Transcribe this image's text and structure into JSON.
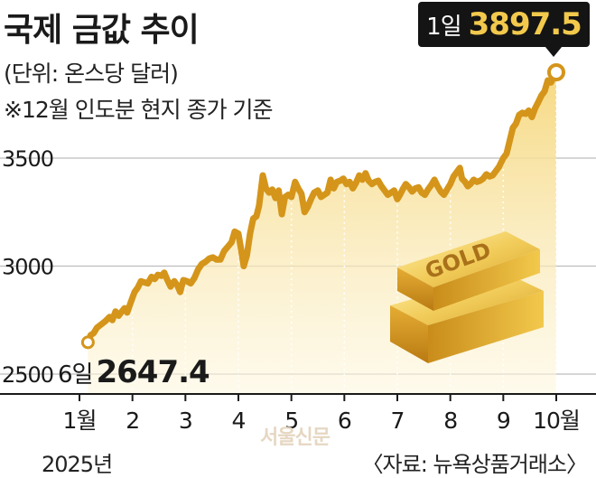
{
  "title": "국제 금값 추이",
  "subtitle": "(단위: 온스당 달러)",
  "note": "※12월 인도분 현지 종가 기준",
  "year_label": "2025년",
  "source": "〈자료: 뉴욕상품거래소〉",
  "watermark": "서울신문",
  "callouts": {
    "start_label": "6일",
    "start_value": "2647.4",
    "end_label": "1일",
    "end_value": "3897.5"
  },
  "gold_bar_text": "GOLD",
  "colors": {
    "line": "#d4951a",
    "area_top": "#f6d77c",
    "area_bottom": "#fdf6dd",
    "grid": "#bdbdbd",
    "callout_bg": "#141414",
    "callout_value": "#f2c94c"
  },
  "chart_data": {
    "type": "area",
    "title": "국제 금값 추이",
    "ylabel": "",
    "xlabel": "",
    "ylim": [
      2500,
      4000
    ],
    "yticks": [
      2500,
      3000,
      3500
    ],
    "grid": true,
    "month_ticks": [
      {
        "label": "1월",
        "x": 0.0
      },
      {
        "label": "2",
        "x": 1.0
      },
      {
        "label": "3",
        "x": 2.0
      },
      {
        "label": "4",
        "x": 3.0
      },
      {
        "label": "5",
        "x": 4.0
      },
      {
        "label": "6",
        "x": 5.0
      },
      {
        "label": "7",
        "x": 6.0
      },
      {
        "label": "8",
        "x": 7.0
      },
      {
        "label": "9",
        "x": 8.0
      },
      {
        "label": "10월",
        "x": 9.0
      }
    ],
    "series": [
      {
        "points": [
          [
            0.16,
            2647
          ],
          [
            0.21,
            2680
          ],
          [
            0.27,
            2690
          ],
          [
            0.33,
            2715
          ],
          [
            0.41,
            2730
          ],
          [
            0.49,
            2745
          ],
          [
            0.57,
            2765
          ],
          [
            0.62,
            2750
          ],
          [
            0.68,
            2790
          ],
          [
            0.74,
            2770
          ],
          [
            0.8,
            2790
          ],
          [
            0.85,
            2805
          ],
          [
            0.9,
            2785
          ],
          [
            0.98,
            2840
          ],
          [
            1.04,
            2880
          ],
          [
            1.1,
            2900
          ],
          [
            1.16,
            2930
          ],
          [
            1.22,
            2925
          ],
          [
            1.29,
            2920
          ],
          [
            1.36,
            2950
          ],
          [
            1.42,
            2940
          ],
          [
            1.48,
            2960
          ],
          [
            1.55,
            2955
          ],
          [
            1.6,
            2970
          ],
          [
            1.66,
            2935
          ],
          [
            1.72,
            2905
          ],
          [
            1.79,
            2930
          ],
          [
            1.85,
            2910
          ],
          [
            1.9,
            2880
          ],
          [
            1.96,
            2935
          ],
          [
            2.03,
            2930
          ],
          [
            2.1,
            2920
          ],
          [
            2.17,
            2945
          ],
          [
            2.24,
            2985
          ],
          [
            2.31,
            3010
          ],
          [
            2.38,
            3020
          ],
          [
            2.45,
            3035
          ],
          [
            2.52,
            3040
          ],
          [
            2.59,
            3030
          ],
          [
            2.66,
            3030
          ],
          [
            2.73,
            3070
          ],
          [
            2.8,
            3090
          ],
          [
            2.87,
            3110
          ],
          [
            2.93,
            3160
          ],
          [
            3.0,
            3150
          ],
          [
            3.05,
            3080
          ],
          [
            3.1,
            3000
          ],
          [
            3.16,
            3050
          ],
          [
            3.22,
            3150
          ],
          [
            3.28,
            3220
          ],
          [
            3.34,
            3230
          ],
          [
            3.39,
            3280
          ],
          [
            3.46,
            3420
          ],
          [
            3.52,
            3360
          ],
          [
            3.58,
            3340
          ],
          [
            3.64,
            3355
          ],
          [
            3.7,
            3315
          ],
          [
            3.76,
            3350
          ],
          [
            3.82,
            3240
          ],
          [
            3.88,
            3320
          ],
          [
            3.94,
            3330
          ],
          [
            4.0,
            3320
          ],
          [
            4.07,
            3390
          ],
          [
            4.13,
            3360
          ],
          [
            4.19,
            3335
          ],
          [
            4.25,
            3250
          ],
          [
            4.31,
            3275
          ],
          [
            4.37,
            3310
          ],
          [
            4.43,
            3340
          ],
          [
            4.5,
            3350
          ],
          [
            4.56,
            3320
          ],
          [
            4.62,
            3330
          ],
          [
            4.68,
            3340
          ],
          [
            4.74,
            3400
          ],
          [
            4.8,
            3360
          ],
          [
            4.86,
            3390
          ],
          [
            4.92,
            3395
          ],
          [
            4.98,
            3405
          ],
          [
            5.04,
            3380
          ],
          [
            5.1,
            3390
          ],
          [
            5.16,
            3360
          ],
          [
            5.22,
            3385
          ],
          [
            5.28,
            3420
          ],
          [
            5.34,
            3400
          ],
          [
            5.4,
            3430
          ],
          [
            5.46,
            3395
          ],
          [
            5.52,
            3380
          ],
          [
            5.58,
            3390
          ],
          [
            5.64,
            3395
          ],
          [
            5.7,
            3370
          ],
          [
            5.76,
            3350
          ],
          [
            5.82,
            3330
          ],
          [
            5.88,
            3340
          ],
          [
            5.94,
            3350
          ],
          [
            6.0,
            3310
          ],
          [
            6.05,
            3330
          ],
          [
            6.11,
            3360
          ],
          [
            6.16,
            3380
          ],
          [
            6.22,
            3365
          ],
          [
            6.28,
            3345
          ],
          [
            6.34,
            3360
          ],
          [
            6.4,
            3365
          ],
          [
            6.46,
            3340
          ],
          [
            6.52,
            3330
          ],
          [
            6.58,
            3355
          ],
          [
            6.64,
            3375
          ],
          [
            6.7,
            3400
          ],
          [
            6.76,
            3370
          ],
          [
            6.82,
            3345
          ],
          [
            6.88,
            3330
          ],
          [
            6.94,
            3355
          ],
          [
            7.0,
            3380
          ],
          [
            7.06,
            3415
          ],
          [
            7.12,
            3435
          ],
          [
            7.18,
            3455
          ],
          [
            7.22,
            3405
          ],
          [
            7.28,
            3390
          ],
          [
            7.33,
            3370
          ],
          [
            7.38,
            3380
          ],
          [
            7.44,
            3400
          ],
          [
            7.5,
            3390
          ],
          [
            7.56,
            3395
          ],
          [
            7.62,
            3405
          ],
          [
            7.68,
            3425
          ],
          [
            7.74,
            3415
          ],
          [
            7.8,
            3420
          ],
          [
            7.86,
            3440
          ],
          [
            7.92,
            3460
          ],
          [
            8.0,
            3500
          ],
          [
            8.06,
            3520
          ],
          [
            8.12,
            3580
          ],
          [
            8.18,
            3640
          ],
          [
            8.24,
            3660
          ],
          [
            8.3,
            3700
          ],
          [
            8.36,
            3710
          ],
          [
            8.42,
            3705
          ],
          [
            8.48,
            3720
          ],
          [
            8.54,
            3690
          ],
          [
            8.6,
            3730
          ],
          [
            8.66,
            3760
          ],
          [
            8.72,
            3790
          ],
          [
            8.78,
            3810
          ],
          [
            8.84,
            3860
          ],
          [
            8.9,
            3850
          ],
          [
            8.96,
            3880
          ],
          [
            9.0,
            3897.5
          ]
        ]
      }
    ]
  }
}
